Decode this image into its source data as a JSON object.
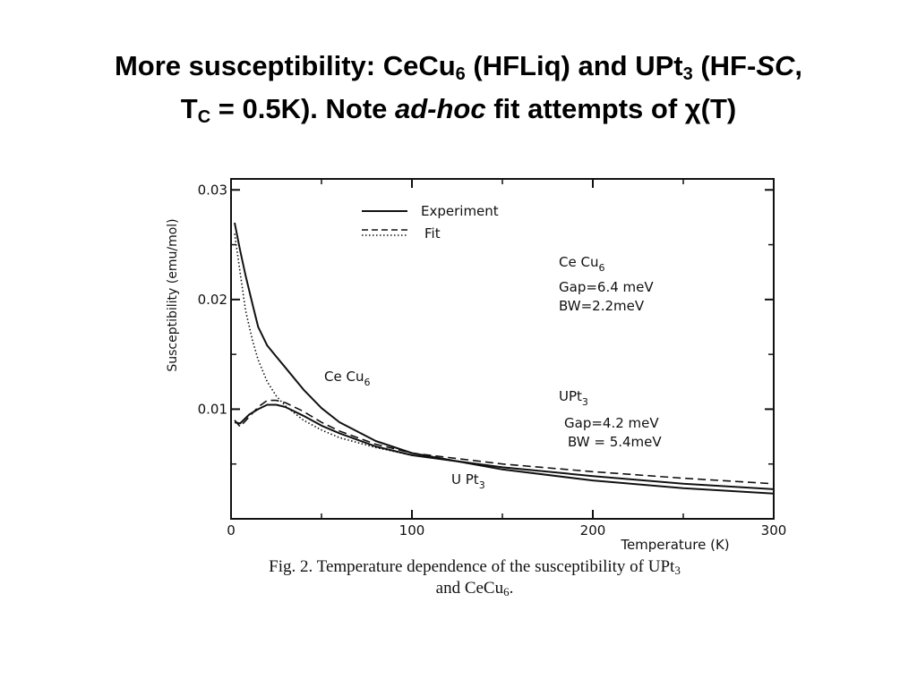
{
  "slide": {
    "title_part1": "More susceptibility: CeCu",
    "title_sub1": "6",
    "title_part2": " (HFLiq) and UPt",
    "title_sub2": "3",
    "title_part3": " (HF-",
    "title_italic1": "SC",
    "title_part4": ",",
    "title_line2_part1": "T",
    "title_line2_sub": "C",
    "title_line2_part2": " = 0.5K). Note ",
    "title_line2_italic": "ad-hoc",
    "title_line2_part3": " fit attempts of ",
    "title_line2_chi": "χ",
    "title_line2_part4": "(T)"
  },
  "caption": {
    "line1_part1": "Fig. 2. Temperature dependence of the susceptibility of UPt",
    "line1_sub": "3",
    "line2_part1": "and CeCu",
    "line2_sub": "6",
    "line2_part2": "."
  },
  "chart_data": {
    "type": "line",
    "xlabel": "Temperature (K)",
    "ylabel": "Susceptibility (emu/mol)",
    "xlim": [
      0,
      300
    ],
    "ylim": [
      0,
      0.031
    ],
    "x_ticks": [
      0,
      100,
      200,
      300
    ],
    "y_ticks": [
      0.01,
      0.02,
      0.03
    ],
    "x_tick_labels": [
      "0",
      "100",
      "200",
      "300"
    ],
    "y_tick_labels": [
      "0.01",
      "0.02",
      "0.03"
    ],
    "legend": {
      "placement": "top-center",
      "entries": [
        {
          "label": "Experiment",
          "style": "solid"
        },
        {
          "label": "Fit",
          "style": "dashed/dotted"
        }
      ]
    },
    "series": [
      {
        "name": "Ce Cu6 Experiment",
        "style": "solid",
        "x": [
          2,
          5,
          8,
          12,
          15,
          20,
          25,
          30,
          40,
          50,
          60,
          80,
          100,
          150,
          200,
          250,
          300
        ],
        "y": [
          0.027,
          0.0245,
          0.0222,
          0.0195,
          0.0175,
          0.0158,
          0.0148,
          0.0138,
          0.0118,
          0.0101,
          0.0088,
          0.0071,
          0.006,
          0.0045,
          0.0035,
          0.0028,
          0.0023
        ]
      },
      {
        "name": "Ce Cu6 Fit",
        "style": "dotted",
        "x": [
          2,
          5,
          8,
          12,
          15,
          20,
          25,
          30,
          40,
          50,
          60,
          80,
          100
        ],
        "y": [
          0.026,
          0.0225,
          0.019,
          0.0162,
          0.0145,
          0.0125,
          0.0112,
          0.0103,
          0.009,
          0.0081,
          0.0074,
          0.0065,
          0.0058
        ]
      },
      {
        "name": "UPt3 Experiment",
        "style": "solid",
        "x": [
          2,
          5,
          10,
          15,
          20,
          25,
          30,
          40,
          50,
          60,
          80,
          100,
          150,
          200,
          250,
          300
        ],
        "y": [
          0.0088,
          0.0087,
          0.0095,
          0.01,
          0.0104,
          0.0104,
          0.0102,
          0.0094,
          0.0085,
          0.0078,
          0.0066,
          0.0058,
          0.0047,
          0.0039,
          0.0032,
          0.0027
        ]
      },
      {
        "name": "UPt3 Fit",
        "style": "dashed",
        "x": [
          2,
          5,
          10,
          15,
          20,
          25,
          30,
          40,
          50,
          60,
          80,
          100,
          150,
          200,
          250,
          300
        ],
        "y": [
          0.009,
          0.0084,
          0.0093,
          0.0102,
          0.0108,
          0.0108,
          0.0106,
          0.0098,
          0.0088,
          0.008,
          0.0068,
          0.006,
          0.005,
          0.0043,
          0.0037,
          0.0032
        ]
      }
    ],
    "annotations": {
      "cecu6_top": {
        "base": "Ce Cu",
        "sub": "6"
      },
      "cecu6_gap": "Gap=6.4 meV",
      "cecu6_bw": "BW=2.2meV",
      "cecu6_curve": {
        "base": "Ce  Cu",
        "sub": "6"
      },
      "upt3_right": {
        "base": "UPt",
        "sub": "3"
      },
      "upt3_gap": "Gap=4.2 meV",
      "upt3_bw": "BW = 5.4meV",
      "upt3_curve": {
        "base": "U Pt",
        "sub": "3"
      }
    }
  }
}
